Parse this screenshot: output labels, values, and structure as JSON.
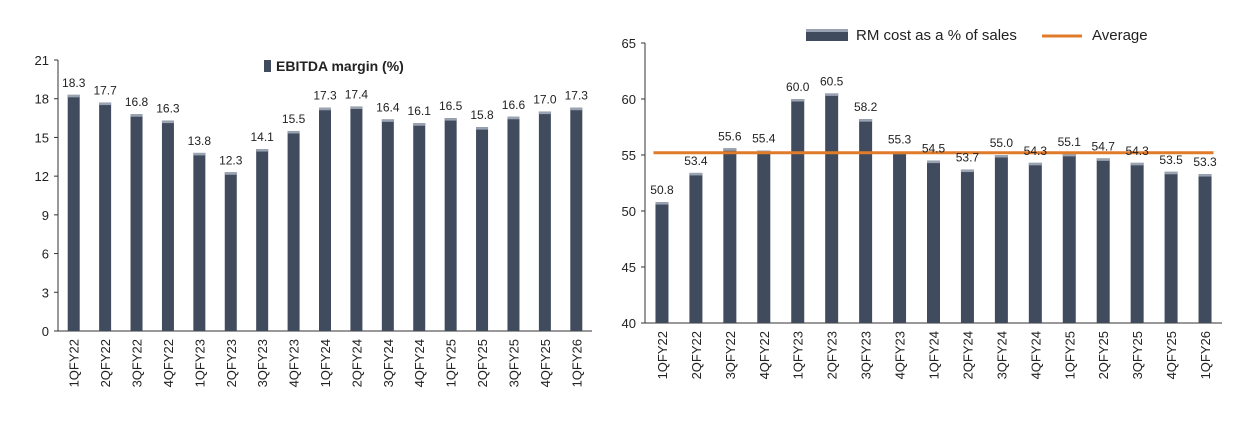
{
  "chart_data": [
    {
      "type": "bar",
      "categories": [
        "1QFY22",
        "2QFY22",
        "3QFY22",
        "4QFY22",
        "1QFY23",
        "2QFY23",
        "3QFY23",
        "4QFY23",
        "1QFY24",
        "2QFY24",
        "3QFY24",
        "4QFY24",
        "1QFY25",
        "2QFY25",
        "3QFY25",
        "4QFY25",
        "1QFY26"
      ],
      "series": [
        {
          "name": "EBITDA margin (%)",
          "values": [
            18.3,
            17.7,
            16.8,
            16.3,
            13.8,
            12.3,
            14.1,
            15.5,
            17.3,
            17.4,
            16.4,
            16.1,
            16.5,
            15.8,
            16.6,
            17.0,
            17.3
          ],
          "labels": [
            "18.3",
            "17.7",
            "16.8",
            "16.3",
            "13.8",
            "12.3",
            "14.1",
            "15.5",
            "17.3",
            "17.4",
            "16.4",
            "16.1",
            "16.5",
            "15.8",
            "16.6",
            "17.0",
            "17.3"
          ]
        }
      ],
      "yticks": [
        "0",
        "3",
        "6",
        "9",
        "12",
        "15",
        "18",
        "21"
      ],
      "ylim": [
        0,
        21
      ],
      "legend": "top-center",
      "grid": false,
      "colors": {
        "bar": "#404b5e",
        "bar_cap": "#9aa3b1"
      }
    },
    {
      "type": "bar",
      "categories": [
        "1QFY22",
        "2QFY22",
        "3QFY22",
        "4QFY22",
        "1QFY23",
        "2QFY23",
        "3QFY23",
        "4QFY23",
        "1QFY24",
        "2QFY24",
        "3QFY24",
        "4QFY24",
        "1QFY25",
        "2QFY25",
        "3QFY25",
        "4QFY25",
        "1QFY26"
      ],
      "series": [
        {
          "name": "RM cost as a % of sales",
          "values": [
            50.8,
            53.4,
            55.6,
            55.4,
            60.0,
            60.5,
            58.2,
            55.3,
            54.5,
            53.7,
            55.0,
            54.3,
            55.1,
            54.7,
            54.3,
            53.5,
            53.3
          ],
          "labels": [
            "50.8",
            "53.4",
            "55.6",
            "55.4",
            "60.0",
            "60.5",
            "58.2",
            "55.3",
            "54.5",
            "53.7",
            "55.0",
            "54.3",
            "55.1",
            "54.7",
            "54.3",
            "53.5",
            "53.3"
          ]
        },
        {
          "name": "Average",
          "type": "line",
          "value": 55.2
        }
      ],
      "yticks": [
        "40",
        "45",
        "50",
        "55",
        "60",
        "65"
      ],
      "ylim": [
        40,
        65
      ],
      "legend": "top",
      "grid": false,
      "colors": {
        "bar": "#404b5e",
        "bar_cap": "#9aa3b1",
        "average": "#e07b2a"
      }
    }
  ]
}
